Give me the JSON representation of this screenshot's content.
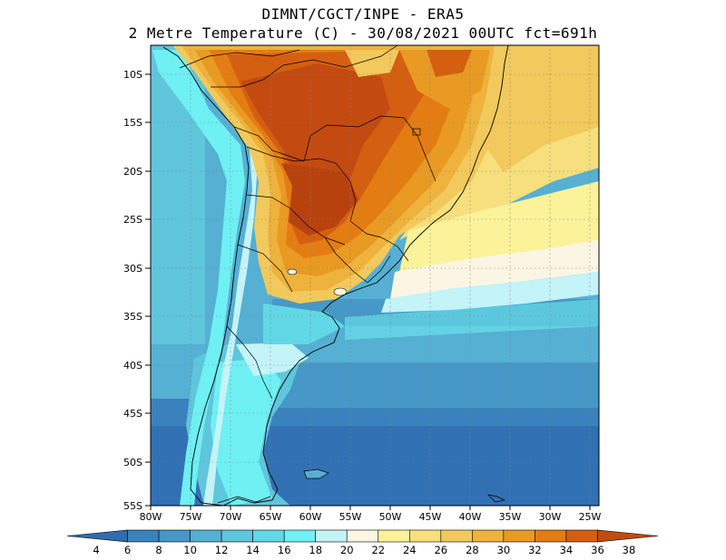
{
  "header": {
    "line1": "DIMNT/CGCT/INPE  -   ERA5",
    "line2": "2 Metre Temperature (C)  -   30/08/2021 00UTC fct=691h"
  },
  "axes": {
    "lat_labels": [
      "10S",
      "15S",
      "20S",
      "25S",
      "30S",
      "35S",
      "40S",
      "45S",
      "50S",
      "55S"
    ],
    "lon_labels": [
      "80W",
      "75W",
      "70W",
      "65W",
      "60W",
      "55W",
      "50W",
      "45W",
      "40W",
      "35W",
      "30W",
      "25W"
    ]
  },
  "colorbar": {
    "labels": [
      "4",
      "6",
      "8",
      "10",
      "12",
      "14",
      "16",
      "18",
      "20",
      "22",
      "24",
      "26",
      "28",
      "30",
      "32",
      "34",
      "36",
      "38"
    ],
    "colors": [
      "#2f6db0",
      "#3a82bd",
      "#4698c6",
      "#55b0d3",
      "#5fc6dc",
      "#62d8e6",
      "#6ff0f3",
      "#c4f3f8",
      "#fbf6e4",
      "#fbf29a",
      "#f7df7d",
      "#f2c95c",
      "#eeb23d",
      "#e99a23",
      "#e37d13",
      "#d45f10",
      "#c34a10"
    ]
  },
  "map_data": {
    "region": "South America",
    "lat_range": [
      "8S",
      "55S"
    ],
    "lon_range": [
      "80W",
      "25W"
    ]
  }
}
